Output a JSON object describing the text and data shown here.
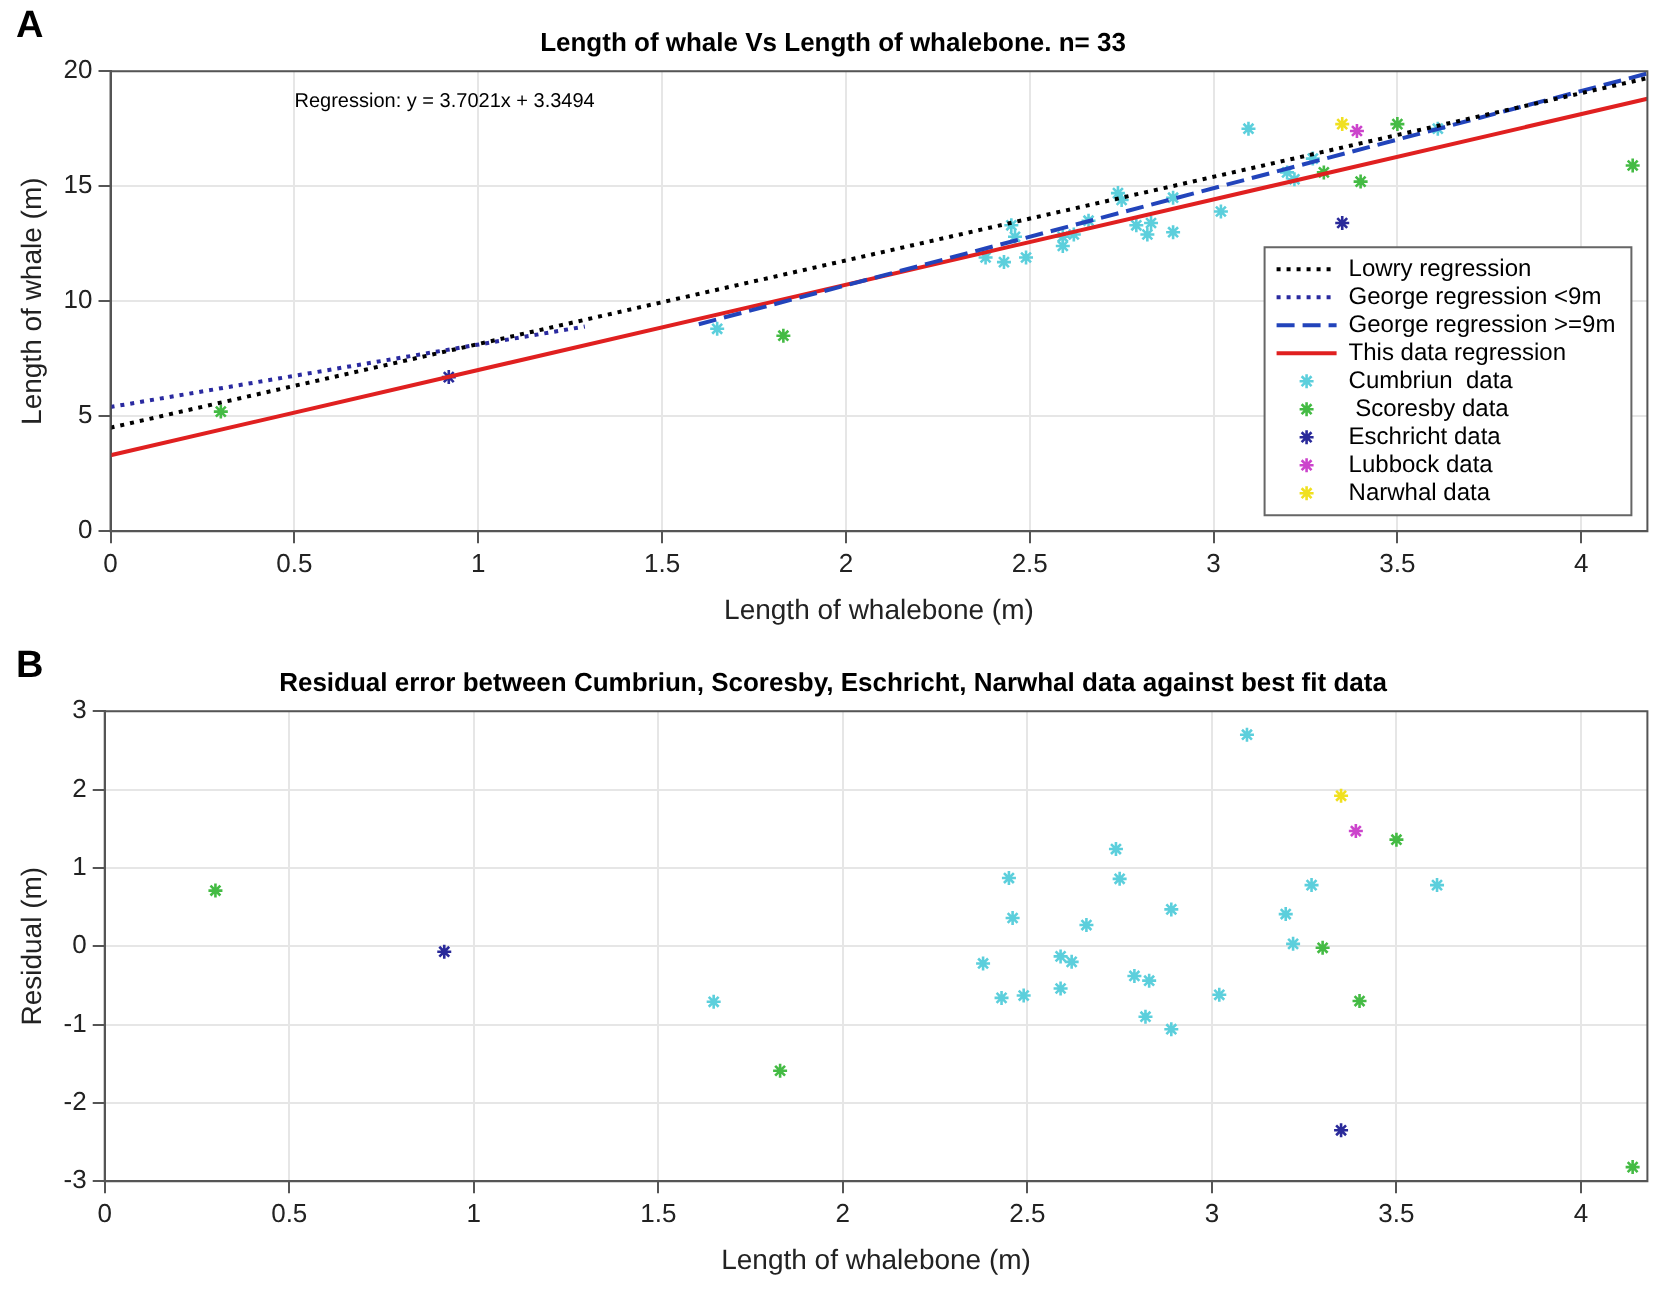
{
  "chart_data": [
    {
      "type": "scatter",
      "title": "Length of whale Vs Length of whalebone. n= 33",
      "xlabel": "Length of whalebone (m)",
      "ylabel": "Length of whale (m)",
      "xlim": [
        0,
        4.18
      ],
      "xticks": [
        0,
        0.5,
        1,
        1.5,
        2,
        2.5,
        3,
        3.5,
        4
      ],
      "ylim": [
        0,
        20
      ],
      "yticks": [
        0,
        5,
        10,
        15,
        20
      ],
      "grid": true,
      "legend": "bottom right",
      "marker": "cross",
      "annotations": [
        "A",
        "Regression: y = 3.7021x + 3.3494"
      ],
      "series": [
        {
          "name": "Lowry regression",
          "type": "line",
          "marker": "none",
          "line_style": "dotted",
          "color": "#000000",
          "x": [
            0,
            4.18
          ],
          "values": [
            4.5,
            19.7
          ]
        },
        {
          "name": "George regression <9m",
          "type": "line",
          "marker": "none",
          "line_style": "dotted",
          "color": "#2a2aa0",
          "x": [
            0,
            1.29
          ],
          "values": [
            5.4,
            8.9
          ]
        },
        {
          "name": "George regression >=9m",
          "type": "line",
          "marker": "none",
          "line_style": "dashed",
          "color": "#2244bb",
          "x": [
            1.6,
            4.18
          ],
          "values": [
            9.0,
            19.9
          ]
        },
        {
          "name": "This data regression",
          "type": "line",
          "marker": "none",
          "line_style": "solid",
          "color": "#e02020",
          "x": [
            0,
            4.18
          ],
          "values": [
            3.3,
            18.8
          ]
        },
        {
          "name": "Cumbriun  data",
          "color": "#5ccfdc",
          "x": [
            3.095,
            2.74,
            2.45,
            2.75,
            3.27,
            3.61,
            2.89,
            3.2,
            2.46,
            2.66,
            3.22,
            2.38,
            2.59,
            2.62,
            2.79,
            2.83,
            2.59,
            2.43,
            2.49,
            3.02,
            2.82,
            2.89,
            1.65
          ],
          "values": [
            17.5,
            14.7,
            13.3,
            14.4,
            16.2,
            17.5,
            14.5,
            15.6,
            12.8,
            13.5,
            15.3,
            11.9,
            12.8,
            12.9,
            13.3,
            13.4,
            12.4,
            11.7,
            11.9,
            13.9,
            12.9,
            13.0,
            8.8
          ]
        },
        {
          "name": " Scoresby data",
          "color": "#44bb44",
          "x": [
            0.3,
            1.83,
            3.5,
            3.3,
            3.4,
            4.14
          ],
          "values": [
            5.2,
            8.5,
            17.7,
            15.6,
            15.2,
            15.9
          ]
        },
        {
          "name": "Eschricht data",
          "color": "#2a2a9a",
          "x": [
            0.92,
            3.35
          ],
          "values": [
            6.7,
            13.4
          ]
        },
        {
          "name": "Lubbock data",
          "color": "#cc44cc",
          "x": [
            3.39
          ],
          "values": [
            17.4
          ]
        },
        {
          "name": "Narwhal data",
          "color": "#f0e020",
          "x": [
            3.35
          ],
          "values": [
            17.7
          ]
        }
      ]
    },
    {
      "type": "scatter",
      "title": "Residual error between Cumbriun, Scoresby, Eschricht, Narwhal data against best fit data",
      "xlabel": "Length of whalebone (m)",
      "ylabel": "Residual (m)",
      "xlim": [
        0,
        4.18
      ],
      "xticks": [
        0,
        0.5,
        1,
        1.5,
        2,
        2.5,
        3,
        3.5,
        4
      ],
      "ylim": [
        -3,
        3
      ],
      "yticks": [
        -3,
        -2,
        -1,
        0,
        1,
        2,
        3
      ],
      "grid": true,
      "marker": "cross",
      "annotations": [
        "B"
      ],
      "series": [
        {
          "color": "#5ccfdc",
          "x": [
            3.095,
            2.74,
            2.45,
            2.75,
            3.27,
            3.61,
            2.89,
            3.2,
            2.46,
            2.66,
            3.22,
            2.38,
            2.59,
            2.62,
            2.79,
            2.83,
            2.59,
            2.43,
            2.49,
            3.02,
            2.82,
            2.89,
            1.65
          ],
          "values": [
            2.7,
            1.24,
            0.87,
            0.86,
            0.78,
            0.78,
            0.47,
            0.41,
            0.36,
            0.27,
            0.03,
            -0.22,
            -0.13,
            -0.2,
            -0.38,
            -0.44,
            -0.54,
            -0.66,
            -0.63,
            -0.62,
            -0.9,
            -1.06,
            -0.71
          ]
        },
        {
          "color": "#44bb44",
          "x": [
            0.3,
            1.83,
            3.5,
            3.3,
            3.4,
            4.14
          ],
          "values": [
            0.71,
            -1.59,
            1.36,
            -0.02,
            -0.7,
            -2.82
          ]
        },
        {
          "color": "#2a2a9a",
          "x": [
            0.92,
            3.35
          ],
          "values": [
            -0.07,
            -2.35
          ]
        },
        {
          "color": "#cc44cc",
          "x": [
            3.39
          ],
          "values": [
            1.47
          ]
        },
        {
          "color": "#f0e020",
          "x": [
            3.35
          ],
          "values": [
            1.92
          ]
        }
      ]
    }
  ]
}
